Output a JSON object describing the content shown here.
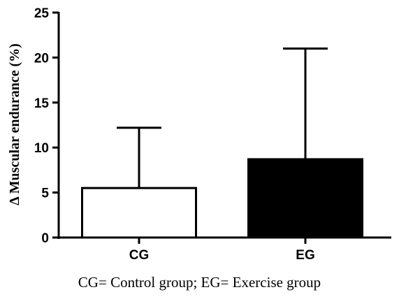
{
  "chart_data": {
    "type": "bar",
    "categories": [
      "CG",
      "EG"
    ],
    "values": [
      5.5,
      8.7
    ],
    "error_upper": [
      12.2,
      21.0
    ],
    "fills": [
      "#ffffff",
      "#000000"
    ],
    "ylabel": "Δ Muscular endurance (%)",
    "xlabel": "",
    "ylim": [
      0,
      25
    ],
    "yticks": [
      "0",
      "5",
      "10",
      "15",
      "20",
      "25"
    ],
    "grid": false
  },
  "caption": "CG= Control group; EG= Exercise group"
}
